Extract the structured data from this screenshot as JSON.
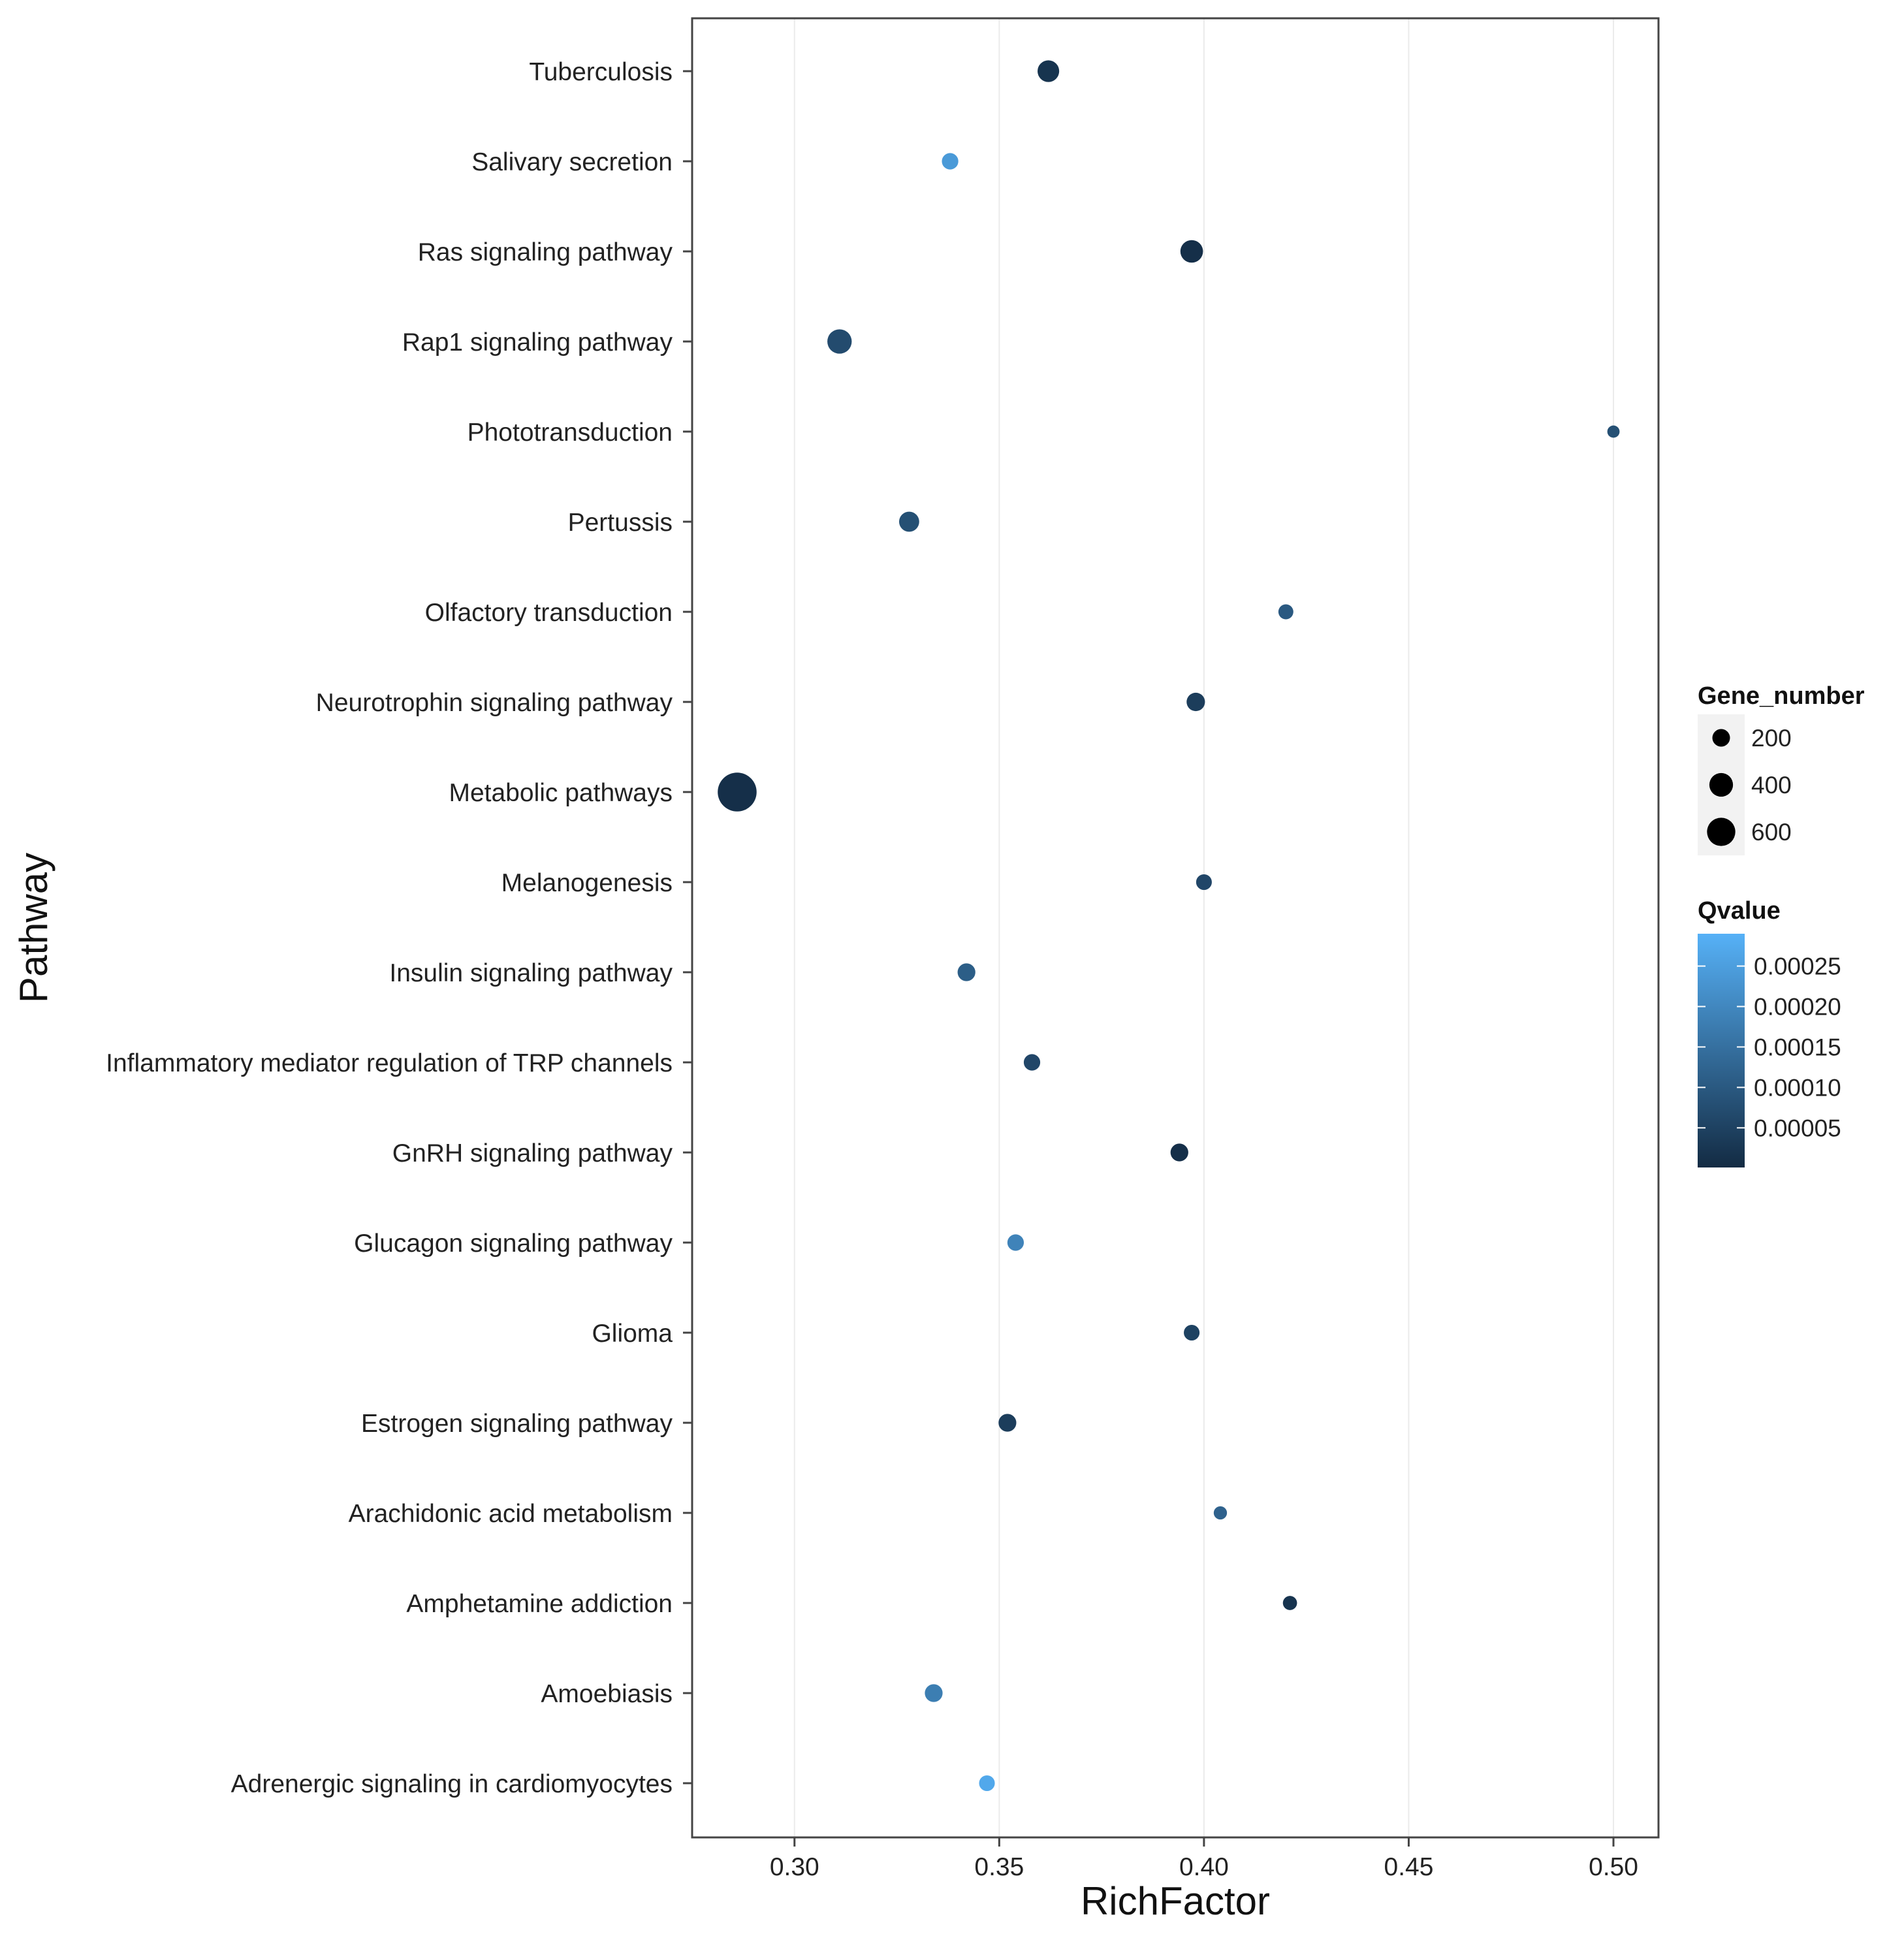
{
  "chart_data": {
    "type": "scatter",
    "title": "",
    "xlabel": "RichFactor",
    "ylabel": "Pathway",
    "xlim": [
      0.275,
      0.511
    ],
    "x_ticks": [
      0.3,
      0.35,
      0.4,
      0.45,
      0.5
    ],
    "x_tick_labels": [
      "0.30",
      "0.35",
      "0.40",
      "0.45",
      "0.50"
    ],
    "grid": true,
    "legend_position": "right",
    "categories": [
      "Tuberculosis",
      "Salivary secretion",
      "Ras signaling pathway",
      "Rap1 signaling pathway",
      "Phototransduction",
      "Pertussis",
      "Olfactory transduction",
      "Neurotrophin signaling pathway",
      "Metabolic pathways",
      "Melanogenesis",
      "Insulin signaling pathway",
      "Inflammatory mediator regulation of TRP channels",
      "GnRH signaling pathway",
      "Glucagon signaling pathway",
      "Glioma",
      "Estrogen signaling pathway",
      "Arachidonic acid metabolism",
      "Amphetamine addiction",
      "Amoebiasis",
      "Adrenergic signaling in cardiomyocytes"
    ],
    "points": [
      {
        "pathway": "Tuberculosis",
        "rich_factor": 0.362,
        "gene_number": 180,
        "qvalue": 2e-05
      },
      {
        "pathway": "Salivary secretion",
        "rich_factor": 0.338,
        "gene_number": 90,
        "qvalue": 0.00024
      },
      {
        "pathway": "Ras signaling pathway",
        "rich_factor": 0.397,
        "gene_number": 200,
        "qvalue": 1e-05
      },
      {
        "pathway": "Rap1 signaling pathway",
        "rich_factor": 0.311,
        "gene_number": 240,
        "qvalue": 7e-05
      },
      {
        "pathway": "Phototransduction",
        "rich_factor": 0.5,
        "gene_number": 40,
        "qvalue": 8e-05
      },
      {
        "pathway": "Pertussis",
        "rich_factor": 0.328,
        "gene_number": 150,
        "qvalue": 8e-05
      },
      {
        "pathway": "Olfactory transduction",
        "rich_factor": 0.42,
        "gene_number": 70,
        "qvalue": 0.0001
      },
      {
        "pathway": "Neurotrophin signaling pathway",
        "rich_factor": 0.398,
        "gene_number": 120,
        "qvalue": 4e-05
      },
      {
        "pathway": "Metabolic pathways",
        "rich_factor": 0.286,
        "gene_number": 700,
        "qvalue": 1e-05
      },
      {
        "pathway": "Melanogenesis",
        "rich_factor": 0.4,
        "gene_number": 80,
        "qvalue": 6e-05
      },
      {
        "pathway": "Insulin signaling pathway",
        "rich_factor": 0.342,
        "gene_number": 110,
        "qvalue": 0.00011
      },
      {
        "pathway": "Inflammatory mediator regulation of TRP channels",
        "rich_factor": 0.358,
        "gene_number": 90,
        "qvalue": 6e-05
      },
      {
        "pathway": "GnRH signaling pathway",
        "rich_factor": 0.394,
        "gene_number": 110,
        "qvalue": 1e-05
      },
      {
        "pathway": "Glucagon signaling pathway",
        "rich_factor": 0.354,
        "gene_number": 90,
        "qvalue": 0.00019
      },
      {
        "pathway": "Glioma",
        "rich_factor": 0.397,
        "gene_number": 80,
        "qvalue": 5e-05
      },
      {
        "pathway": "Estrogen signaling pathway",
        "rich_factor": 0.352,
        "gene_number": 110,
        "qvalue": 4e-05
      },
      {
        "pathway": "Arachidonic acid metabolism",
        "rich_factor": 0.404,
        "gene_number": 50,
        "qvalue": 0.00012
      },
      {
        "pathway": "Amphetamine addiction",
        "rich_factor": 0.421,
        "gene_number": 60,
        "qvalue": 2e-05
      },
      {
        "pathway": "Amoebiasis",
        "rich_factor": 0.334,
        "gene_number": 110,
        "qvalue": 0.00018
      },
      {
        "pathway": "Adrenergic signaling in cardiomyocytes",
        "rich_factor": 0.347,
        "gene_number": 80,
        "qvalue": 0.00027
      }
    ],
    "size_legend": {
      "title": "Gene_number",
      "breaks": [
        200,
        400,
        600
      ],
      "labels": [
        "200",
        "400",
        "600"
      ]
    },
    "color_legend": {
      "title": "Qvalue",
      "range": [
        1e-06,
        0.00029
      ],
      "breaks": [
        0.00025,
        0.0002,
        0.00015,
        0.0001,
        5e-05
      ],
      "labels": [
        "0.00025",
        "0.00020",
        "0.00015",
        "0.00010",
        "0.00005"
      ],
      "low_color": "#132b43",
      "high_color": "#56b1f7"
    },
    "colors": {
      "panel_background": "#ffffff",
      "panel_border": "#444444",
      "grid_color": "#ebebeb",
      "size_key_background": "#f2f2f2",
      "size_key_color": "#000000"
    }
  }
}
